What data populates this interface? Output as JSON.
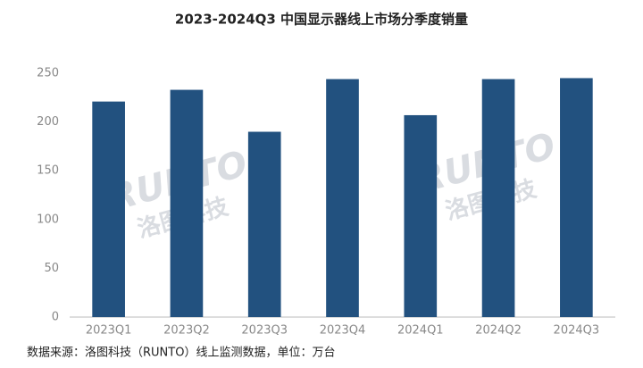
{
  "chart_data": {
    "type": "bar",
    "title": "2023-2024Q3 中国显示器线上市场分季度销量",
    "categories": [
      "2023Q1",
      "2023Q2",
      "2023Q3",
      "2023Q4",
      "2024Q1",
      "2024Q2",
      "2024Q3"
    ],
    "values": [
      221,
      233,
      190,
      244,
      207,
      244,
      245
    ],
    "color": "#22517f",
    "ylim": [
      0,
      250
    ],
    "yticks": [
      0,
      50,
      100,
      150,
      200,
      250
    ],
    "grid": false,
    "watermark": "RUNTO",
    "watermark_cn": "洛图科技",
    "source": "数据来源：洛图科技（RUNTO）线上监测数据，单位：万台"
  }
}
